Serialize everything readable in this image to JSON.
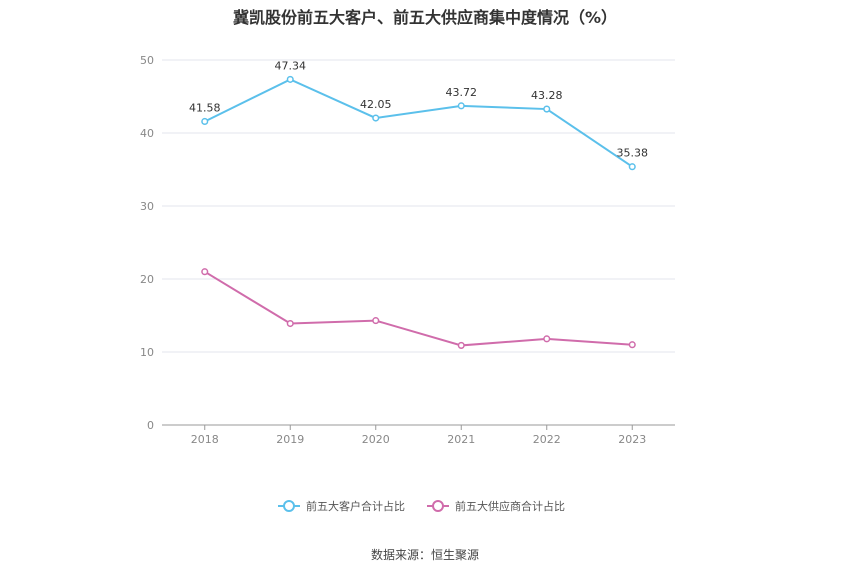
{
  "chart_data": {
    "type": "line",
    "title": "冀凯股份前五大客户、前五大供应商集中度情况（%）",
    "categories": [
      "2018",
      "2019",
      "2020",
      "2021",
      "2022",
      "2023"
    ],
    "ylim": [
      0,
      50
    ],
    "yticks": [
      0,
      10,
      20,
      30,
      40,
      50
    ],
    "grid": true,
    "legend_position": "bottom",
    "series": [
      {
        "name": "前五大客户合计占比",
        "color": "#5bc0eb",
        "values": [
          41.58,
          47.34,
          42.05,
          43.72,
          43.28,
          35.38
        ],
        "show_labels": true
      },
      {
        "name": "前五大供应商合计占比",
        "color": "#d06cab",
        "values": [
          21.0,
          13.9,
          14.3,
          10.9,
          11.8,
          11.0
        ],
        "show_labels": false
      }
    ]
  },
  "source": "数据来源：恒生聚源"
}
